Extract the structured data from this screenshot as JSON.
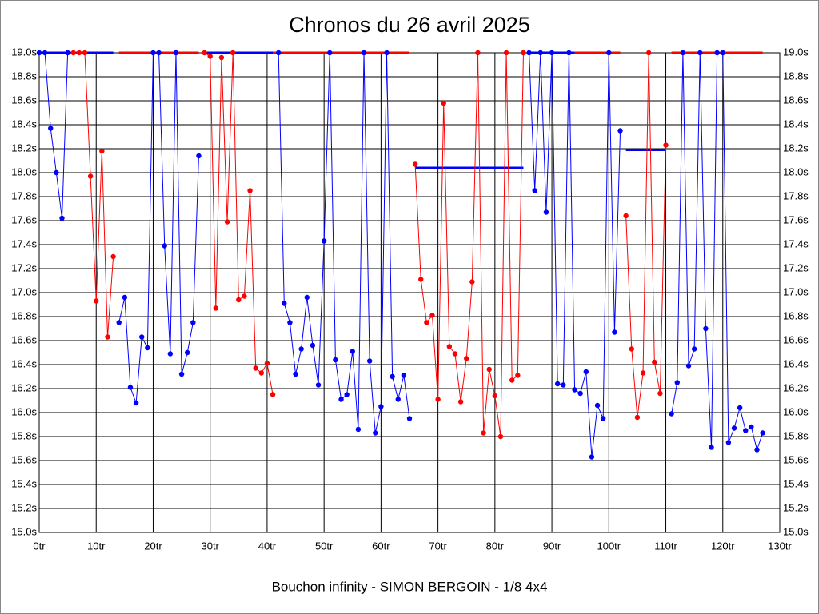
{
  "chart_data": {
    "type": "line",
    "title": "Chronos du 26 avril 2025",
    "x_label": "Bouchon infinity - SIMON BERGOIN - 1/8 4x4",
    "xlim": [
      0,
      130
    ],
    "xticks": [
      {
        "value": 0,
        "label": "0tr"
      },
      {
        "value": 10,
        "label": "10tr"
      },
      {
        "value": 20,
        "label": "20tr"
      },
      {
        "value": 30,
        "label": "30tr"
      },
      {
        "value": 40,
        "label": "40tr"
      },
      {
        "value": 50,
        "label": "50tr"
      },
      {
        "value": 60,
        "label": "60tr"
      },
      {
        "value": 70,
        "label": "70tr"
      },
      {
        "value": 80,
        "label": "80tr"
      },
      {
        "value": 90,
        "label": "90tr"
      },
      {
        "value": 100,
        "label": "100tr"
      },
      {
        "value": 110,
        "label": "110tr"
      },
      {
        "value": 120,
        "label": "120tr"
      },
      {
        "value": 130,
        "label": "130tr"
      }
    ],
    "ylim": [
      15.0,
      19.0
    ],
    "yticks": [
      {
        "value": 15.0,
        "label": "15.0s"
      },
      {
        "value": 15.2,
        "label": "15.2s"
      },
      {
        "value": 15.4,
        "label": "15.4s"
      },
      {
        "value": 15.6,
        "label": "15.6s"
      },
      {
        "value": 15.8,
        "label": "15.8s"
      },
      {
        "value": 16.0,
        "label": "16.0s"
      },
      {
        "value": 16.2,
        "label": "16.2s"
      },
      {
        "value": 16.4,
        "label": "16.4s"
      },
      {
        "value": 16.6,
        "label": "16.6s"
      },
      {
        "value": 16.8,
        "label": "16.8s"
      },
      {
        "value": 17.0,
        "label": "17.0s"
      },
      {
        "value": 17.2,
        "label": "17.2s"
      },
      {
        "value": 17.4,
        "label": "17.4s"
      },
      {
        "value": 17.6,
        "label": "17.6s"
      },
      {
        "value": 17.8,
        "label": "17.8s"
      },
      {
        "value": 18.0,
        "label": "18.0s"
      },
      {
        "value": 18.2,
        "label": "18.2s"
      },
      {
        "value": 18.4,
        "label": "18.4s"
      },
      {
        "value": 18.6,
        "label": "18.6s"
      },
      {
        "value": 18.8,
        "label": "18.8s"
      },
      {
        "value": 19.0,
        "label": "19.0s"
      }
    ],
    "grid": true,
    "series": [
      {
        "color": "#0000ff",
        "x": [
          0,
          1,
          2,
          3,
          4,
          5
        ],
        "values": [
          19.0,
          19.0,
          18.37,
          18.0,
          17.62,
          19.0
        ]
      },
      {
        "color": "#ff0000",
        "x": [
          6,
          7,
          8,
          9,
          10,
          11,
          12,
          13
        ],
        "values": [
          19.0,
          19.0,
          19.0,
          17.97,
          16.93,
          18.18,
          16.63,
          17.3
        ]
      },
      {
        "color": "#0000ff",
        "x": [
          14,
          15,
          16,
          17,
          18,
          19,
          20,
          21,
          22,
          23,
          24,
          25,
          26,
          27,
          28
        ],
        "values": [
          16.75,
          16.96,
          16.21,
          16.08,
          16.63,
          16.54,
          19.0,
          19.0,
          17.39,
          16.49,
          19.0,
          16.32,
          16.5,
          16.75,
          18.14
        ]
      },
      {
        "color": "#ff0000",
        "x": [
          29,
          30,
          31,
          32,
          33,
          34,
          35,
          36,
          37,
          38,
          39,
          40,
          41
        ],
        "values": [
          19.0,
          18.97,
          16.87,
          18.96,
          17.59,
          19.0,
          16.94,
          16.97,
          17.85,
          16.37,
          16.33,
          16.41,
          16.15
        ]
      },
      {
        "color": "#0000ff",
        "x": [
          42,
          43,
          44,
          45,
          46,
          47,
          48,
          49,
          50,
          51,
          52,
          53,
          54,
          55,
          56,
          57,
          58,
          59,
          60,
          61,
          62,
          63,
          64,
          65
        ],
        "values": [
          19.0,
          16.91,
          16.75,
          16.32,
          16.53,
          16.96,
          16.56,
          16.23,
          17.43,
          19.0,
          16.44,
          16.11,
          16.15,
          16.51,
          15.86,
          19.0,
          16.43,
          15.83,
          16.05,
          19.0,
          16.3,
          16.11,
          16.31,
          15.95
        ]
      },
      {
        "color": "#ff0000",
        "x": [
          66,
          67,
          68,
          69,
          70,
          71,
          72,
          73,
          74,
          75,
          76,
          77,
          78,
          79,
          80,
          81,
          82,
          83,
          84,
          85
        ],
        "values": [
          18.07,
          17.11,
          16.75,
          16.81,
          16.11,
          18.58,
          16.55,
          16.49,
          16.09,
          16.45,
          17.09,
          19.0,
          15.83,
          16.36,
          16.14,
          15.8,
          19.0,
          16.27,
          16.31,
          19.0
        ]
      },
      {
        "color": "#0000ff",
        "x": [
          86,
          87,
          88,
          89,
          90,
          91,
          92,
          93,
          94,
          95,
          96,
          97,
          98,
          99,
          100,
          101,
          102
        ],
        "values": [
          19.0,
          17.85,
          19.0,
          17.67,
          19.0,
          16.24,
          16.23,
          19.0,
          16.19,
          16.16,
          16.34,
          15.63,
          16.06,
          15.95,
          19.0,
          16.67,
          18.35
        ]
      },
      {
        "color": "#ff0000",
        "x": [
          103,
          104,
          105,
          106,
          107,
          108,
          109,
          110
        ],
        "values": [
          17.64,
          16.53,
          15.96,
          16.33,
          19.0,
          16.42,
          16.16,
          18.23
        ]
      },
      {
        "color": "#0000ff",
        "x": [
          111,
          112,
          113,
          114,
          115,
          116,
          117,
          118,
          119,
          120,
          121,
          122,
          123,
          124,
          125,
          126,
          127
        ],
        "values": [
          15.99,
          16.25,
          19.0,
          16.39,
          16.53,
          19.0,
          16.7,
          15.71,
          19.0,
          19.0,
          15.75,
          15.87,
          16.04,
          15.85,
          15.88,
          15.69,
          15.83
        ]
      }
    ],
    "lines": [
      {
        "color": "#0000ff",
        "x": [
          0,
          13
        ],
        "y": 19.0
      },
      {
        "color": "#ff0000",
        "x": [
          14,
          28
        ],
        "y": 19.0
      },
      {
        "color": "#0000ff",
        "x": [
          29,
          41
        ],
        "y": 19.0
      },
      {
        "color": "#ff0000",
        "x": [
          41,
          65
        ],
        "y": 19.0
      },
      {
        "color": "#0000ff",
        "x": [
          66,
          85
        ],
        "y": 18.04
      },
      {
        "color": "#0000ff",
        "x": [
          86,
          94
        ],
        "y": 19.0
      },
      {
        "color": "#ff0000",
        "x": [
          94,
          102
        ],
        "y": 19.0
      },
      {
        "color": "#0000ff",
        "x": [
          103,
          110
        ],
        "y": 18.19
      },
      {
        "color": "#ff0000",
        "x": [
          111,
          127
        ],
        "y": 19.0
      }
    ]
  }
}
